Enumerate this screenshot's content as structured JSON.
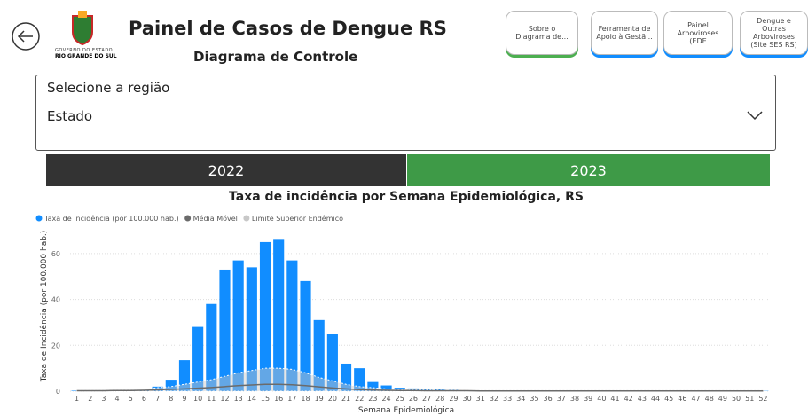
{
  "header": {
    "title": "Painel de Casos de Dengue RS",
    "subtitle": "Diagrama de Controle",
    "logo_top": "GOVERNO DO ESTADO",
    "logo_bottom": "RIO GRANDE DO SUL"
  },
  "nav_buttons": [
    "Sobre o Diagrama de...",
    "Ferramenta de Apoio à Gestã...",
    "Painel Arboviroses (EDE",
    "Dengue e Outras Arboviroses (Site SES RS)"
  ],
  "slicer": {
    "label": "Selecione a região",
    "value": "Estado"
  },
  "years": [
    "2022",
    "2023"
  ],
  "chart_data": {
    "type": "bar",
    "title": "Taxa de incidência por Semana Epidemiológica, RS",
    "x_label": "Semana Epidemiológica",
    "y_label": "Taxa de Incidência (por 100.000 hab.)",
    "categories": [
      "1",
      "2",
      "3",
      "4",
      "5",
      "6",
      "7",
      "8",
      "9",
      "10",
      "11",
      "12",
      "13",
      "14",
      "15",
      "16",
      "17",
      "18",
      "19",
      "20",
      "21",
      "22",
      "23",
      "24",
      "25",
      "26",
      "27",
      "28",
      "29",
      "30",
      "31",
      "32",
      "33",
      "34",
      "35",
      "36",
      "37",
      "38",
      "39",
      "40",
      "41",
      "42",
      "43",
      "44",
      "45",
      "46",
      "47",
      "48",
      "49",
      "50",
      "51",
      "52"
    ],
    "series": [
      {
        "name": "Taxa de Incidência (por 100.000 hab.)",
        "type": "bar",
        "color": "#118dff",
        "values": [
          0.2,
          0.2,
          0.2,
          0.3,
          0.3,
          0.5,
          2,
          5,
          13.5,
          28,
          38,
          53,
          57,
          54,
          65,
          66,
          57,
          48,
          31,
          25,
          12,
          10,
          4,
          2.5,
          1.5,
          1.2,
          1,
          1,
          0.6,
          0.3,
          0.2,
          0.2,
          0.1,
          0.1,
          0.1,
          0.1,
          0.1,
          0.1,
          0.1,
          0.1,
          0.1,
          0.1,
          0.1,
          0.1,
          0.1,
          0.1,
          0.1,
          0.1,
          0.1,
          0.1,
          0.1,
          0.1
        ]
      },
      {
        "name": "Média Móvel",
        "type": "line",
        "color": "#6b6b6b",
        "values": [
          0.2,
          0.2,
          0.2,
          0.3,
          0.3,
          0.4,
          0.6,
          0.8,
          1,
          1.3,
          1.6,
          2,
          2.4,
          2.7,
          3,
          3,
          2.8,
          2.4,
          1.9,
          1.4,
          1,
          0.7,
          0.5,
          0.4,
          0.3,
          0.3,
          0.2,
          0.2,
          0.2,
          0.2,
          0.1,
          0.1,
          0.1,
          0.1,
          0.1,
          0.1,
          0.1,
          0.1,
          0.1,
          0.1,
          0.1,
          0.1,
          0.1,
          0.1,
          0.1,
          0.1,
          0.1,
          0.1,
          0.1,
          0.1,
          0.1,
          0.1
        ]
      },
      {
        "name": "Limite Superior Endêmico",
        "type": "area",
        "color": "#c8c8c8",
        "values": [
          0.5,
          0.5,
          0.6,
          0.7,
          0.8,
          1,
          1.5,
          2,
          3,
          4,
          5,
          6.5,
          8,
          9,
          10,
          10,
          9.5,
          8,
          6,
          4.5,
          3,
          2,
          1.5,
          1,
          0.8,
          0.7,
          0.6,
          0.5,
          0.5,
          0.5,
          0.5,
          0.5,
          0.5,
          0.5,
          0.5,
          0.5,
          0.5,
          0.5,
          0.5,
          0.5,
          0.5,
          0.5,
          0.5,
          0.5,
          0.5,
          0.5,
          0.5,
          0.5,
          0.5,
          0.5,
          0.5,
          0.5
        ]
      }
    ],
    "ylim": [
      0,
      70
    ],
    "yticks": [
      0,
      20,
      40,
      60
    ],
    "grid": true,
    "legend": "top-left"
  }
}
